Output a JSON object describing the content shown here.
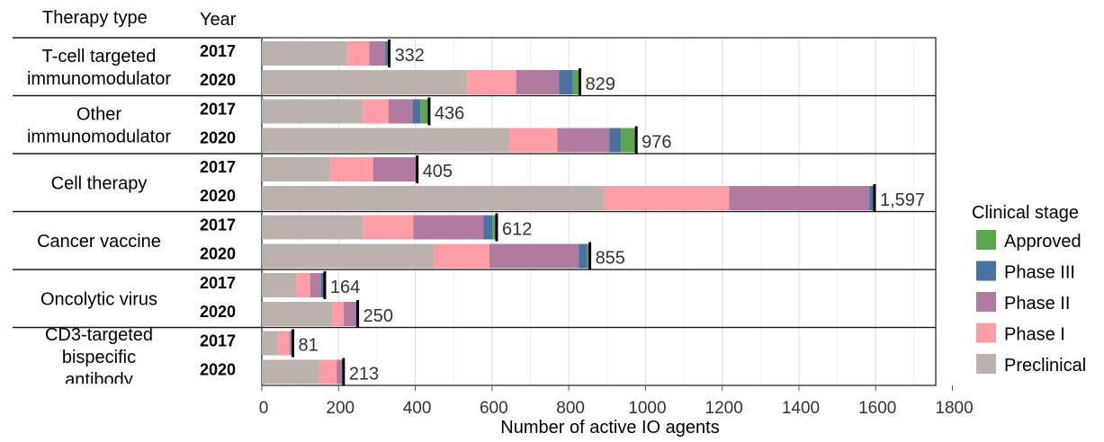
{
  "header": {
    "therapy_type": "Therapy type",
    "year": "Year"
  },
  "chart_data": {
    "type": "bar",
    "orientation": "horizontal",
    "stacked": true,
    "xlabel": "Number of active IO agents",
    "xlim": [
      0,
      1800
    ],
    "xticks": [
      0,
      200,
      400,
      600,
      800,
      1000,
      1200,
      1400,
      1600,
      1800
    ],
    "grid": true,
    "legend": {
      "title": "Clinical stage",
      "position": "right"
    },
    "stages": [
      {
        "name": "Preclinical",
        "color": "#bbb2ad"
      },
      {
        "name": "Phase I",
        "color": "#fd9ea7"
      },
      {
        "name": "Phase II",
        "color": "#b07b9f"
      },
      {
        "name": "Phase III",
        "color": "#4a72a0"
      },
      {
        "name": "Approved",
        "color": "#5ba64e"
      }
    ],
    "legend_order": [
      "Approved",
      "Phase III",
      "Phase II",
      "Phase I",
      "Preclinical"
    ],
    "groups": [
      {
        "label": [
          "T-cell targeted",
          "immunomodulator"
        ],
        "rows": [
          {
            "year": "2017",
            "total": 332,
            "total_label": "332",
            "values": [
              222,
              58,
              42,
              6,
              4
            ]
          },
          {
            "year": "2020",
            "total": 829,
            "total_label": "829",
            "values": [
              535,
              128,
              112,
              36,
              18
            ]
          }
        ]
      },
      {
        "label": [
          "Other",
          "immunomodulator"
        ],
        "rows": [
          {
            "year": "2017",
            "total": 436,
            "total_label": "436",
            "values": [
              263,
              67,
              63,
              20,
              23
            ]
          },
          {
            "year": "2020",
            "total": 976,
            "total_label": "976",
            "values": [
              645,
              125,
              136,
              30,
              40
            ]
          }
        ]
      },
      {
        "label": [
          "Cell therapy"
        ],
        "rows": [
          {
            "year": "2017",
            "total": 405,
            "total_label": "405",
            "values": [
              178,
              112,
              113,
              2,
              0
            ]
          },
          {
            "year": "2020",
            "total": 1597,
            "total_label": "1,597",
            "values": [
              893,
              325,
              366,
              13,
              0
            ]
          }
        ]
      },
      {
        "label": [
          "Cancer vaccine"
        ],
        "rows": [
          {
            "year": "2017",
            "total": 612,
            "total_label": "612",
            "values": [
              263,
              132,
              183,
              24,
              10
            ]
          },
          {
            "year": "2020",
            "total": 855,
            "total_label": "855",
            "values": [
              448,
              145,
              233,
              22,
              7
            ]
          }
        ]
      },
      {
        "label": [
          "Oncolytic virus"
        ],
        "rows": [
          {
            "year": "2017",
            "total": 164,
            "total_label": "164",
            "values": [
              90,
              36,
              28,
              10,
              0
            ]
          },
          {
            "year": "2020",
            "total": 250,
            "total_label": "250",
            "values": [
              183,
              30,
              32,
              5,
              0
            ]
          }
        ]
      },
      {
        "label": [
          "CD3-targeted",
          "bispecific",
          "antibody"
        ],
        "rows": [
          {
            "year": "2017",
            "total": 81,
            "total_label": "81",
            "values": [
              42,
              30,
              9,
              0,
              0
            ]
          },
          {
            "year": "2020",
            "total": 213,
            "total_label": "213",
            "values": [
              150,
              45,
              15,
              3,
              0
            ]
          }
        ]
      }
    ]
  }
}
